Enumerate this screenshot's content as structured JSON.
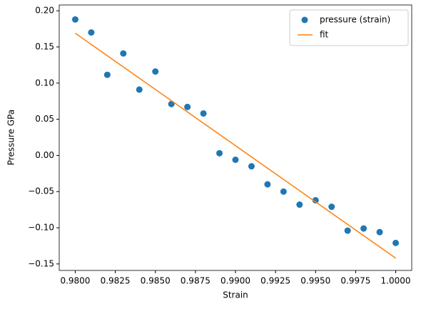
{
  "chart_data": {
    "type": "scatter",
    "x_label": "Strain",
    "y_label": "Pressure GPa",
    "xlim": [
      0.979,
      1.001
    ],
    "ylim": [
      -0.159,
      0.208
    ],
    "xticks": [
      {
        "value": 0.98,
        "label": "0.9800"
      },
      {
        "value": 0.9825,
        "label": "0.9825"
      },
      {
        "value": 0.985,
        "label": "0.9850"
      },
      {
        "value": 0.9875,
        "label": "0.9875"
      },
      {
        "value": 0.99,
        "label": "0.9900"
      },
      {
        "value": 0.9925,
        "label": "0.9925"
      },
      {
        "value": 0.995,
        "label": "0.9950"
      },
      {
        "value": 0.9975,
        "label": "0.9975"
      },
      {
        "value": 1.0,
        "label": "1.0000"
      }
    ],
    "yticks": [
      {
        "value": -0.15,
        "label": "−0.15"
      },
      {
        "value": -0.1,
        "label": "−0.10"
      },
      {
        "value": -0.05,
        "label": "−0.05"
      },
      {
        "value": 0,
        "label": "0.00"
      },
      {
        "value": 0.05,
        "label": "0.05"
      },
      {
        "value": 0.1,
        "label": "0.10"
      },
      {
        "value": 0.15,
        "label": "0.15"
      },
      {
        "value": 0.2,
        "label": "0.20"
      }
    ],
    "legend": "upper right",
    "series": [
      {
        "name": "pressure (strain)",
        "type": "scatter",
        "color": "#1f77b4",
        "x": [
          0.98,
          0.981,
          0.982,
          0.983,
          0.984,
          0.985,
          0.986,
          0.987,
          0.988,
          0.989,
          0.99,
          0.991,
          0.992,
          0.993,
          0.994,
          0.995,
          0.996,
          0.997,
          0.998,
          0.999,
          1.0
        ],
        "values": [
          0.188,
          0.17,
          0.1115,
          0.141,
          0.091,
          0.116,
          0.071,
          0.067,
          0.058,
          0.003,
          -0.006,
          -0.015,
          -0.04,
          -0.05,
          -0.068,
          -0.062,
          -0.071,
          -0.104,
          -0.101,
          -0.106,
          -0.121
        ]
      },
      {
        "name": "fit",
        "type": "line",
        "color": "#ff7f0e",
        "x": [
          0.98,
          1.0
        ],
        "values": [
          0.169,
          -0.142
        ]
      }
    ]
  }
}
